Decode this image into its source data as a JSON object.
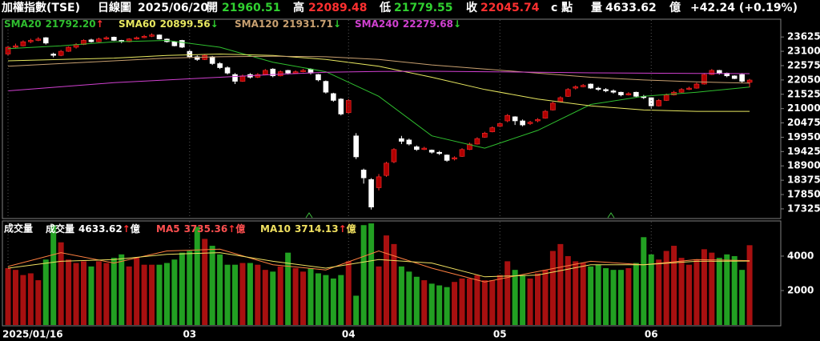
{
  "header": {
    "title": "加權指數(TSE)",
    "period": "日線圖",
    "date": "2025/06/20",
    "open_label": "開",
    "open": 21960.51,
    "high_label": "高",
    "high": 22089.48,
    "low_label": "低",
    "low": 21779.55,
    "close_label": "收",
    "close": 22045.74,
    "close_suffix": "c 點",
    "volume_label": "量",
    "volume": 4633.62,
    "volume_unit": "億",
    "change": "+42.24 (+0.19%)"
  },
  "chart_data": [
    {
      "type": "candlestick",
      "ylim": [
        17000,
        24100
      ],
      "yticks": [
        23625,
        23100,
        22575,
        22050,
        21525,
        21000,
        20475,
        19950,
        19425,
        18900,
        18375,
        17850,
        17325
      ],
      "up_color": "#b00000",
      "down_color": "#ffffff",
      "ohlc": [
        [
          23000,
          23300,
          22950,
          23250
        ],
        [
          23250,
          23380,
          23200,
          23300
        ],
        [
          23300,
          23500,
          23280,
          23450
        ],
        [
          23450,
          23560,
          23400,
          23500
        ],
        [
          23500,
          23620,
          23470,
          23550
        ],
        [
          23600,
          23620,
          23350,
          23400
        ],
        [
          23000,
          23050,
          22880,
          22950
        ],
        [
          22950,
          23150,
          22920,
          23100
        ],
        [
          23100,
          23280,
          23080,
          23250
        ],
        [
          23250,
          23400,
          23200,
          23350
        ],
        [
          23350,
          23540,
          23330,
          23500
        ],
        [
          23520,
          23560,
          23420,
          23450
        ],
        [
          23450,
          23600,
          23430,
          23550
        ],
        [
          23550,
          23650,
          23520,
          23600
        ],
        [
          23620,
          23640,
          23480,
          23500
        ],
        [
          23500,
          23520,
          23400,
          23450
        ],
        [
          23450,
          23580,
          23430,
          23550
        ],
        [
          23550,
          23640,
          23530,
          23600
        ],
        [
          23600,
          23700,
          23580,
          23650
        ],
        [
          23650,
          23760,
          23620,
          23700
        ],
        [
          23700,
          23720,
          23530,
          23550
        ],
        [
          23550,
          23570,
          23420,
          23450
        ],
        [
          23450,
          23480,
          23280,
          23300
        ],
        [
          23500,
          23520,
          23220,
          23250
        ],
        [
          23100,
          23150,
          22850,
          22900
        ],
        [
          22900,
          22950,
          22750,
          22800
        ],
        [
          22800,
          23000,
          22780,
          22950
        ],
        [
          22900,
          22930,
          22600,
          22650
        ],
        [
          22650,
          22700,
          22450,
          22500
        ],
        [
          22500,
          22550,
          22250,
          22300
        ],
        [
          22250,
          22300,
          21900,
          22000
        ],
        [
          22000,
          22250,
          21980,
          22200
        ],
        [
          22250,
          22300,
          22100,
          22150
        ],
        [
          22150,
          22300,
          22120,
          22250
        ],
        [
          22250,
          22450,
          22230,
          22400
        ],
        [
          22450,
          22480,
          22150,
          22200
        ],
        [
          22200,
          22400,
          22180,
          22350
        ],
        [
          22400,
          22420,
          22250,
          22300
        ],
        [
          22300,
          22400,
          22280,
          22350
        ],
        [
          22350,
          22450,
          22330,
          22400
        ],
        [
          22450,
          22480,
          22250,
          22300
        ],
        [
          22250,
          22270,
          22000,
          22050
        ],
        [
          22000,
          22030,
          21550,
          21600
        ],
        [
          21550,
          21580,
          21250,
          21300
        ],
        [
          21350,
          21380,
          20750,
          20800
        ],
        [
          20850,
          21350,
          20800,
          21300
        ],
        [
          20000,
          20100,
          19150,
          19230
        ],
        [
          18750,
          18800,
          18250,
          18460
        ],
        [
          18400,
          18450,
          17300,
          17390
        ],
        [
          18100,
          18600,
          18000,
          18500
        ],
        [
          18550,
          19050,
          18500,
          19000
        ],
        [
          19050,
          19550,
          19000,
          19500
        ],
        [
          19900,
          20000,
          19700,
          19800
        ],
        [
          19850,
          19900,
          19650,
          19700
        ],
        [
          19600,
          19650,
          19450,
          19500
        ],
        [
          19500,
          19600,
          19480,
          19550
        ],
        [
          19480,
          19500,
          19350,
          19400
        ],
        [
          19400,
          19450,
          19300,
          19350
        ],
        [
          19300,
          19320,
          19050,
          19100
        ],
        [
          19150,
          19250,
          19100,
          19200
        ],
        [
          19250,
          19550,
          19230,
          19500
        ],
        [
          19500,
          19750,
          19480,
          19700
        ],
        [
          19700,
          19950,
          19680,
          19900
        ],
        [
          19950,
          20150,
          19930,
          20100
        ],
        [
          20150,
          20350,
          20130,
          20300
        ],
        [
          20350,
          20500,
          20320,
          20450
        ],
        [
          20550,
          20800,
          20500,
          20750
        ],
        [
          20700,
          20720,
          20400,
          20550
        ],
        [
          20550,
          20600,
          20350,
          20400
        ],
        [
          20450,
          20550,
          20400,
          20500
        ],
        [
          20550,
          20650,
          20500,
          20600
        ],
        [
          20650,
          20950,
          20630,
          20900
        ],
        [
          20950,
          21250,
          20930,
          21200
        ],
        [
          21250,
          21450,
          21230,
          21400
        ],
        [
          21450,
          21750,
          21430,
          21700
        ],
        [
          21750,
          21850,
          21700,
          21800
        ],
        [
          21800,
          21900,
          21780,
          21850
        ],
        [
          21900,
          21920,
          21720,
          21750
        ],
        [
          21750,
          21800,
          21650,
          21700
        ],
        [
          21700,
          21750,
          21600,
          21650
        ],
        [
          21650,
          21700,
          21550,
          21600
        ],
        [
          21600,
          21620,
          21450,
          21500
        ],
        [
          21500,
          21600,
          21480,
          21550
        ],
        [
          21600,
          21620,
          21400,
          21450
        ],
        [
          21450,
          21500,
          21350,
          21400
        ],
        [
          21400,
          21420,
          21000,
          21100
        ],
        [
          21100,
          21350,
          21080,
          21300
        ],
        [
          21300,
          21550,
          21280,
          21500
        ],
        [
          21500,
          21650,
          21480,
          21600
        ],
        [
          21600,
          21750,
          21580,
          21700
        ],
        [
          21700,
          21800,
          21680,
          21750
        ],
        [
          21750,
          21950,
          21730,
          21900
        ],
        [
          21900,
          22300,
          21880,
          22250
        ],
        [
          22250,
          22450,
          22230,
          22400
        ],
        [
          22400,
          22420,
          22250,
          22300
        ],
        [
          22300,
          22320,
          22150,
          22200
        ],
        [
          22200,
          22220,
          22080,
          22100
        ],
        [
          22250,
          22300,
          21950,
          22000
        ],
        [
          21960.51,
          22089.48,
          21779.55,
          22045.74
        ]
      ],
      "series": [
        {
          "name": "SMA20",
          "value_label": "21792.20",
          "arrow": "↑",
          "arrow_color": "#ff3030",
          "color": "#2fbf2f",
          "x": [
            0,
            7,
            14,
            21,
            28,
            35,
            42,
            49,
            56,
            63,
            70,
            77,
            84,
            91,
            98
          ],
          "values": [
            23200,
            23300,
            23450,
            23500,
            23250,
            22700,
            22350,
            21450,
            20000,
            19550,
            20200,
            21150,
            21450,
            21600,
            21792.2
          ]
        },
        {
          "name": "SMA60",
          "value_label": "20899.56",
          "arrow": "↓",
          "arrow_color": "#30d030",
          "color": "#e8e860",
          "x": [
            0,
            7,
            14,
            21,
            28,
            35,
            42,
            49,
            56,
            63,
            70,
            77,
            84,
            91,
            98
          ],
          "values": [
            22750,
            22800,
            22850,
            22950,
            23000,
            22950,
            22800,
            22550,
            22150,
            21700,
            21350,
            21100,
            20950,
            20900,
            20899.56
          ]
        },
        {
          "name": "SMA120",
          "value_label": "21931.71",
          "arrow": "↓",
          "arrow_color": "#30d030",
          "color": "#c8a070",
          "x": [
            0,
            7,
            14,
            21,
            28,
            35,
            42,
            49,
            56,
            63,
            70,
            77,
            84,
            91,
            98
          ],
          "values": [
            22550,
            22650,
            22750,
            22850,
            22900,
            22920,
            22900,
            22800,
            22600,
            22450,
            22300,
            22150,
            22050,
            21980,
            21931.71
          ]
        },
        {
          "name": "SMA240",
          "value_label": "22279.68",
          "arrow": "↓",
          "arrow_color": "#30d030",
          "color": "#d040d0",
          "x": [
            0,
            7,
            14,
            21,
            28,
            35,
            42,
            49,
            56,
            63,
            70,
            77,
            84,
            91,
            98
          ],
          "values": [
            21650,
            21800,
            21950,
            22050,
            22150,
            22250,
            22330,
            22360,
            22370,
            22350,
            22330,
            22310,
            22300,
            22290,
            22279.68
          ]
        }
      ]
    },
    {
      "type": "bar",
      "title": "成交量",
      "unit": "億",
      "ylim": [
        0,
        5950
      ],
      "yticks": [
        4000,
        2000
      ],
      "up_color": "#a81010",
      "down_color": "#22a022",
      "total": {
        "name": "成交量",
        "value_label": "4633.62",
        "arrow": "↑",
        "arrow_color": "#ff3030"
      },
      "categories": [
        "2025/01/16",
        null,
        null,
        null,
        null,
        null,
        null,
        null,
        null,
        null,
        null,
        null,
        null,
        null,
        null,
        null,
        null,
        null,
        null,
        null,
        null,
        null,
        null,
        null,
        "03",
        null,
        null,
        null,
        null,
        null,
        null,
        null,
        null,
        null,
        null,
        null,
        null,
        null,
        null,
        null,
        null,
        null,
        null,
        null,
        null,
        "04",
        null,
        null,
        null,
        null,
        null,
        null,
        null,
        null,
        null,
        null,
        null,
        null,
        null,
        null,
        null,
        null,
        null,
        null,
        null,
        "05",
        null,
        null,
        null,
        null,
        null,
        null,
        null,
        null,
        null,
        null,
        null,
        null,
        null,
        null,
        null,
        null,
        null,
        null,
        null,
        "06",
        null,
        null,
        null,
        null,
        null,
        null,
        null,
        null,
        null,
        null,
        null,
        null,
        null
      ],
      "values": [
        3300,
        3200,
        2900,
        3000,
        2600,
        3800,
        5800,
        4800,
        3800,
        3600,
        3700,
        3400,
        3700,
        3600,
        3900,
        4100,
        3400,
        3900,
        3500,
        3500,
        3500,
        3600,
        3800,
        4200,
        4300,
        5700,
        5000,
        4600,
        4100,
        3500,
        3500,
        3600,
        3600,
        3500,
        3200,
        3100,
        3400,
        4200,
        3300,
        3100,
        3300,
        3000,
        2900,
        2700,
        2900,
        3700,
        1700,
        5800,
        5900,
        3400,
        5200,
        4700,
        3400,
        3100,
        2800,
        2600,
        2400,
        2300,
        2200,
        2500,
        2700,
        2700,
        2900,
        2600,
        2600,
        2900,
        3700,
        3200,
        2900,
        2700,
        3000,
        3200,
        4300,
        4700,
        4000,
        3700,
        3600,
        3400,
        3500,
        3300,
        3200,
        3200,
        3300,
        3600,
        5100,
        4100,
        3800,
        4300,
        4600,
        3900,
        3500,
        3800,
        4400,
        4200,
        3900,
        4100,
        4000,
        3200,
        4633.62
      ],
      "series": [
        {
          "name": "MA5",
          "value_label": "3735.36",
          "arrow": "↑",
          "arrow_color": "#ff3030",
          "color": "#ff8040",
          "x": [
            0,
            7,
            14,
            21,
            28,
            35,
            42,
            49,
            56,
            63,
            70,
            77,
            84,
            91,
            98
          ],
          "values": [
            3400,
            4200,
            3600,
            4300,
            4400,
            3500,
            3200,
            4300,
            3300,
            2500,
            3100,
            3700,
            3500,
            3800,
            3735.36
          ]
        },
        {
          "name": "MA10",
          "value_label": "3714.13",
          "arrow": "↑",
          "arrow_color": "#ff3030",
          "color": "#f0e060",
          "x": [
            0,
            7,
            14,
            21,
            28,
            35,
            42,
            49,
            56,
            63,
            70,
            77,
            84,
            91,
            98
          ],
          "values": [
            3300,
            3700,
            3800,
            4100,
            4200,
            3700,
            3300,
            3800,
            3600,
            2800,
            2900,
            3500,
            3500,
            3700,
            3714.13
          ]
        }
      ]
    }
  ]
}
